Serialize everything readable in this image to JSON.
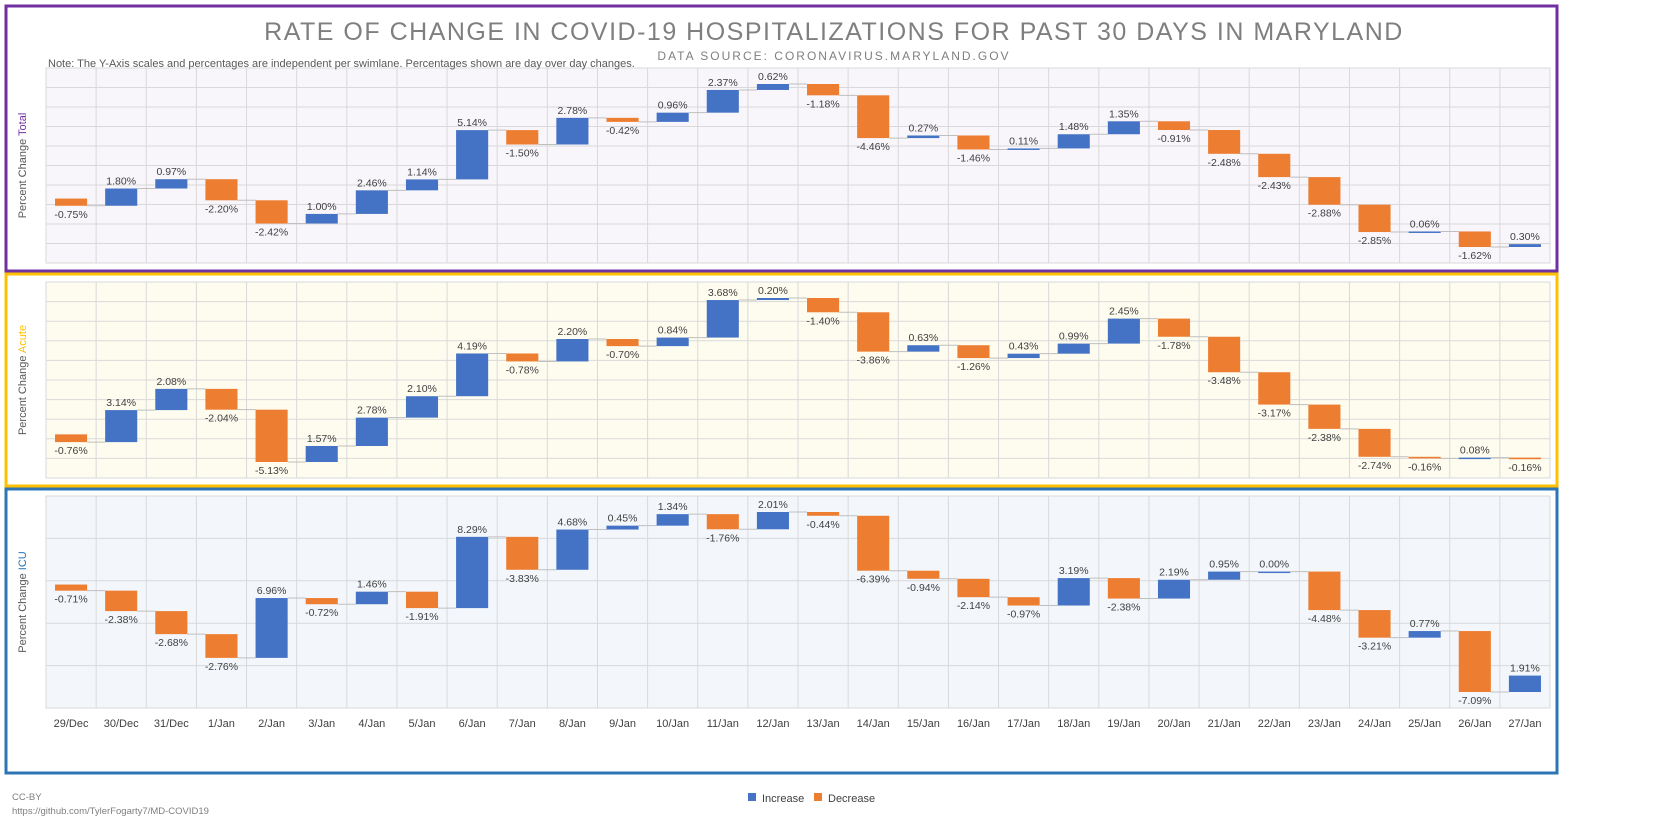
{
  "title": "RATE OF CHANGE IN COVID-19 HOSPITALIZATIONS FOR PAST 30 DAYS IN MARYLAND",
  "subtitle": "DATA SOURCE: CORONAVIRUS.MARYLAND.GOV",
  "note": "Note: The Y-Axis scales and percentages are independent per swimlane. Percentages shown are day over day changes.",
  "footer": {
    "license": "CC-BY",
    "link": "https://github.com/TylerFogarty7/MD-COVID19"
  },
  "colors": {
    "increase": "#4472C4",
    "decrease": "#ED7D31",
    "total": "#7030A0",
    "acute": "#FFC000",
    "icu": "#2E75B6"
  },
  "legend": {
    "increase": "Increase",
    "decrease": "Decrease",
    "placement": "bottom-center"
  },
  "chart_data": {
    "type": "bar",
    "subtype": "waterfall",
    "categories": [
      "29/Dec",
      "30/Dec",
      "31/Dec",
      "1/Jan",
      "2/Jan",
      "3/Jan",
      "4/Jan",
      "5/Jan",
      "6/Jan",
      "7/Jan",
      "8/Jan",
      "9/Jan",
      "10/Jan",
      "11/Jan",
      "12/Jan",
      "13/Jan",
      "14/Jan",
      "15/Jan",
      "16/Jan",
      "17/Jan",
      "18/Jan",
      "19/Jan",
      "20/Jan",
      "21/Jan",
      "22/Jan",
      "23/Jan",
      "24/Jan",
      "25/Jan",
      "26/Jan",
      "27/Jan"
    ],
    "ylabel_prefix": "Percent Change",
    "grid": true,
    "lanes": [
      {
        "name": "Total",
        "values": [
          -0.75,
          1.8,
          0.97,
          -2.2,
          -2.42,
          1.0,
          2.46,
          1.14,
          5.14,
          -1.5,
          2.78,
          -0.42,
          0.96,
          2.37,
          0.62,
          -1.18,
          -4.46,
          0.27,
          -1.46,
          0.11,
          1.48,
          1.35,
          -0.91,
          -2.48,
          -2.43,
          -2.88,
          -2.85,
          0.06,
          -1.62,
          0.3
        ],
        "labels": [
          "-0.75%",
          "1.80%",
          "0.97%",
          "-2.20%",
          "-2.42%",
          "1.00%",
          "2.46%",
          "1.14%",
          "5.14%",
          "-1.50%",
          "2.78%",
          "-0.42%",
          "0.96%",
          "2.37%",
          "0.62%",
          "-1.18%",
          "-4.46%",
          "0.27%",
          "-1.46%",
          "0.11%",
          "1.48%",
          "1.35%",
          "-0.91%",
          "-2.48%",
          "-2.43%",
          "-2.88%",
          "-2.85%",
          "0.06%",
          "-1.62%",
          "0.30%"
        ]
      },
      {
        "name": "Acute",
        "values": [
          -0.76,
          3.14,
          2.08,
          -2.04,
          -5.13,
          1.57,
          2.78,
          2.1,
          4.19,
          -0.78,
          2.2,
          -0.7,
          0.84,
          3.68,
          0.2,
          -1.4,
          -3.86,
          0.63,
          -1.26,
          0.43,
          0.99,
          2.45,
          -1.78,
          -3.48,
          -3.17,
          -2.38,
          -2.74,
          -0.16,
          0.08,
          -0.16
        ],
        "labels": [
          "-0.76%",
          "3.14%",
          "2.08%",
          "-2.04%",
          "-5.13%",
          "1.57%",
          "2.78%",
          "2.10%",
          "4.19%",
          "-0.78%",
          "2.20%",
          "-0.70%",
          "0.84%",
          "3.68%",
          "0.20%",
          "-1.40%",
          "-3.86%",
          "0.63%",
          "-1.26%",
          "0.43%",
          "0.99%",
          "2.45%",
          "-1.78%",
          "-3.48%",
          "-3.17%",
          "-2.38%",
          "-2.74%",
          "-0.16%",
          "0.08%",
          "-0.16%"
        ]
      },
      {
        "name": "ICU",
        "values": [
          -0.71,
          -2.38,
          -2.68,
          -2.76,
          6.96,
          -0.72,
          1.46,
          -1.91,
          8.29,
          -3.83,
          4.68,
          0.45,
          1.34,
          -1.76,
          2.01,
          -0.44,
          -6.39,
          -0.94,
          -2.14,
          -0.97,
          3.19,
          -2.38,
          2.19,
          0.95,
          0.0,
          -4.48,
          -3.21,
          0.77,
          -7.09,
          1.91
        ],
        "labels": [
          "-0.71%",
          "-2.38%",
          "-2.68%",
          "-2.76%",
          "6.96%",
          "-0.72%",
          "1.46%",
          "-1.91%",
          "8.29%",
          "-3.83%",
          "4.68%",
          "0.45%",
          "1.34%",
          "-1.76%",
          "2.01%",
          "-0.44%",
          "-6.39%",
          "-0.94%",
          "-2.14%",
          "-0.97%",
          "3.19%",
          "-2.38%",
          "2.19%",
          "0.95%",
          "0.00%",
          "-4.48%",
          "-3.21%",
          "0.77%",
          "-7.09%",
          "1.91%"
        ]
      }
    ]
  }
}
